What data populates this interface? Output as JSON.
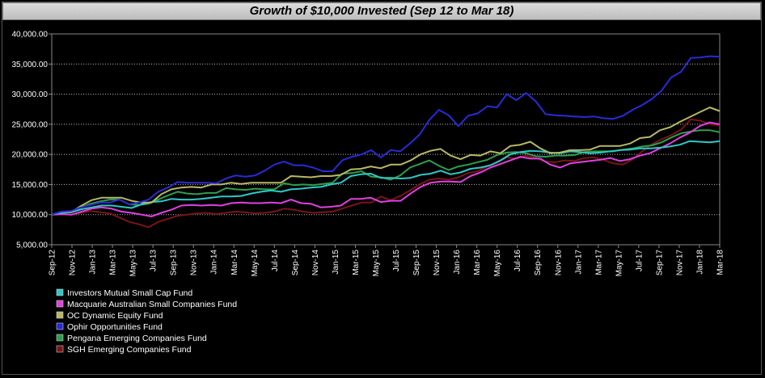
{
  "chart_data": {
    "type": "line",
    "title": "Growth of $10,000 Invested (Sep 12 to Mar 18)",
    "ylim": [
      5000,
      40000
    ],
    "y_ticks": [
      "5,000.00",
      "10,000.00",
      "15,000.00",
      "20,000.00",
      "25,000.00",
      "30,000.00",
      "35,000.00",
      "40,000.00"
    ],
    "y_tick_values": [
      5000,
      10000,
      15000,
      20000,
      25000,
      30000,
      35000,
      40000
    ],
    "x_tick_labels": [
      "Sep-12",
      "Nov-12",
      "Jan-13",
      "Mar-13",
      "May-13",
      "Jul-13",
      "Sep-13",
      "Nov-13",
      "Jan-14",
      "Mar-14",
      "May-14",
      "Jul-14",
      "Sep-14",
      "Nov-14",
      "Jan-15",
      "Mar-15",
      "May-15",
      "Jul-15",
      "Sep-15",
      "Nov-15",
      "Jan-16",
      "Mar-16",
      "May-16",
      "Jul-16",
      "Sep-16",
      "Nov-16",
      "Jan-17",
      "Mar-17",
      "May-17",
      "Jul-17",
      "Sep-17",
      "Nov-17",
      "Jan-18",
      "Mar-18"
    ],
    "grid": "horizontal dotted",
    "legend_position": "bottom-left",
    "series": [
      {
        "name": "Investors Mutual Small Cap Fund",
        "color": "#2ec8c8",
        "values": [
          10000,
          10300,
          10400,
          10900,
          11200,
          11500,
          11500,
          11300,
          11100,
          11700,
          12100,
          12200,
          12600,
          12500,
          12500,
          12600,
          12800,
          13000,
          13000,
          13100,
          13500,
          13800,
          14000,
          13800,
          14200,
          14300,
          14500,
          14600,
          15000,
          15300,
          16400,
          16700,
          16800,
          16100,
          16100,
          16000,
          16100,
          16600,
          16800,
          17300,
          16700,
          17000,
          17600,
          17800,
          18200,
          19000,
          20000,
          20400,
          20600,
          20500,
          20300,
          20200,
          20500,
          20400,
          20200,
          20300,
          20500,
          20700,
          20800,
          21000,
          21000,
          21100,
          21300,
          21600,
          22200,
          22100,
          22000,
          22200
        ]
      },
      {
        "name": "Macquarie Australian Small Companies Fund",
        "color": "#e040e0",
        "values": [
          10000,
          10100,
          10000,
          10500,
          11000,
          11200,
          11000,
          10500,
          10300,
          10000,
          9700,
          10300,
          10800,
          11500,
          11600,
          11500,
          11600,
          11500,
          11900,
          12000,
          11900,
          11900,
          12000,
          11900,
          12500,
          11900,
          11800,
          11200,
          11300,
          11500,
          12600,
          12600,
          12800,
          12100,
          12300,
          12300,
          13500,
          14600,
          15300,
          15500,
          15500,
          15400,
          16400,
          17000,
          17800,
          18400,
          19000,
          19600,
          19300,
          19300,
          18300,
          17800,
          18500,
          18700,
          18900,
          19100,
          19400,
          18900,
          19200,
          19800,
          20200,
          21000,
          21800,
          22800,
          23600,
          24700,
          25300,
          25000
        ]
      },
      {
        "name": "OC Dynamic Equity Fund",
        "color": "#b8b866",
        "values": [
          10000,
          10500,
          10500,
          11500,
          12400,
          12800,
          12800,
          12800,
          12300,
          12000,
          12000,
          13400,
          14200,
          14500,
          14600,
          14500,
          15000,
          15000,
          15300,
          15100,
          15300,
          15300,
          15300,
          15300,
          16400,
          16300,
          16200,
          16400,
          16400,
          16600,
          17500,
          17600,
          18000,
          17700,
          18300,
          18300,
          19000,
          20000,
          20600,
          20900,
          19800,
          19200,
          19900,
          19800,
          20500,
          20200,
          21400,
          21600,
          22100,
          21000,
          20200,
          20300,
          20700,
          20700,
          20800,
          21400,
          21400,
          21400,
          21800,
          22700,
          22900,
          24000,
          24500,
          25400,
          26200,
          27000,
          27800,
          27200
        ]
      },
      {
        "name": "Ophir Opportunities Fund",
        "color": "#2a2ad8",
        "values": [
          10000,
          10500,
          10600,
          11200,
          11600,
          12000,
          12000,
          12500,
          11700,
          12000,
          12500,
          13800,
          14500,
          15400,
          15300,
          15300,
          15300,
          15200,
          16000,
          16500,
          16300,
          16500,
          17300,
          18300,
          18800,
          18200,
          18200,
          17800,
          17200,
          17200,
          19000,
          19600,
          20000,
          20700,
          19500,
          20700,
          20500,
          21800,
          23300,
          25700,
          27400,
          26500,
          24700,
          26400,
          26800,
          28000,
          27800,
          30000,
          29000,
          30200,
          28800,
          26700,
          26500,
          26400,
          26300,
          26200,
          26300,
          26000,
          25900,
          26400,
          27400,
          28200,
          29200,
          30600,
          32800,
          33700,
          36000,
          36100,
          36300,
          36200
        ]
      },
      {
        "name": "Pengana Emerging Companies Fund",
        "color": "#2e9e4e",
        "values": [
          10000,
          10400,
          10400,
          11200,
          11800,
          12200,
          12500,
          12500,
          11700,
          11600,
          11800,
          12500,
          13200,
          13800,
          13500,
          13400,
          13600,
          13600,
          14400,
          14200,
          14100,
          14300,
          14200,
          14200,
          15200,
          14900,
          15000,
          14900,
          15100,
          15300,
          16800,
          16900,
          17200,
          16300,
          16200,
          15800,
          16500,
          17800,
          18400,
          19000,
          18100,
          17400,
          18000,
          18300,
          18700,
          19100,
          19900,
          20300,
          20400,
          20200,
          19700,
          19600,
          19800,
          19800,
          19900,
          20400,
          20500,
          20500,
          20500,
          20800,
          21000,
          21300,
          21500,
          22000,
          22800,
          23500,
          23800,
          24000,
          24000,
          23700
        ]
      },
      {
        "name": "SGH Emerging Companies Fund",
        "color": "#7a1418",
        "values": [
          10000,
          10000,
          10000,
          10300,
          10600,
          10400,
          10200,
          9500,
          8800,
          8400,
          7900,
          8800,
          9300,
          9800,
          10000,
          10200,
          10300,
          10100,
          10300,
          10500,
          10400,
          10200,
          10300,
          10500,
          11000,
          10800,
          10500,
          10300,
          10400,
          10500,
          11000,
          11500,
          12000,
          12000,
          13000,
          12400,
          13100,
          14000,
          15000,
          15800,
          16000,
          15800,
          16200,
          16900,
          17200,
          18000,
          18600,
          19500,
          19300,
          19800,
          19400,
          18800,
          18700,
          19000,
          18900,
          19400,
          19500,
          19100,
          18500,
          18300,
          19200,
          20500,
          21700,
          22500,
          23200,
          24100,
          25800,
          25600,
          25000,
          24800
        ]
      }
    ]
  }
}
